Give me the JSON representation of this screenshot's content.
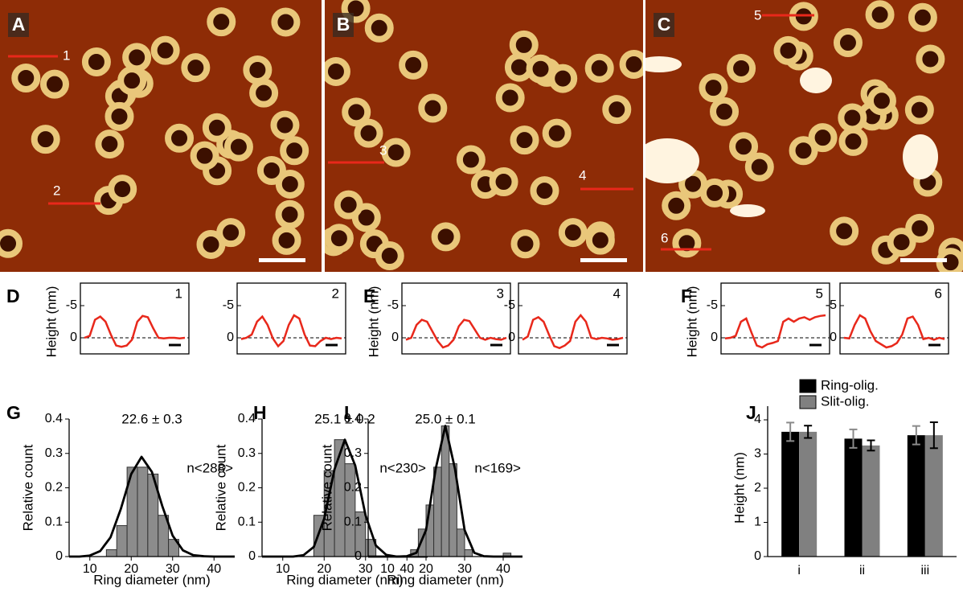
{
  "images": [
    {
      "label": "A",
      "line_labels": [
        "1",
        "2"
      ]
    },
    {
      "label": "B",
      "line_labels": [
        "3",
        "4"
      ]
    },
    {
      "label": "C",
      "line_labels": [
        "5",
        "6"
      ]
    }
  ],
  "chart_data": [
    {
      "type": "profile",
      "panel": "D",
      "ylabel": "Height (nm)",
      "title": "1",
      "values": [
        0,
        -0.3,
        -2.8,
        -3.3,
        -2.5,
        -0.5,
        1.2,
        1.4,
        1.2,
        0.3,
        -2.5,
        -3.4,
        -3.2,
        -1.5,
        0,
        0.1,
        0,
        0,
        0.1,
        0
      ],
      "ylim": [
        2.5,
        -8.5
      ],
      "yticks": [
        -5,
        0
      ],
      "color": "#e8281b"
    },
    {
      "type": "profile",
      "title": "2",
      "values": [
        0.2,
        0,
        -0.5,
        -2.5,
        -3.3,
        -2,
        0.1,
        1.3,
        0.5,
        -2,
        -3.5,
        -3,
        -0.5,
        1.2,
        1.3,
        0.5,
        0,
        0.2,
        0,
        0.1
      ],
      "ylim": [
        2.5,
        -8.5
      ],
      "yticks": [
        -5,
        0
      ],
      "color": "#e8281b"
    },
    {
      "type": "profile",
      "panel": "E",
      "ylabel": "Height (nm)",
      "title": "3",
      "values": [
        0.3,
        0,
        -2,
        -2.8,
        -2.5,
        -1,
        0.5,
        1.5,
        1.2,
        0.3,
        -1.8,
        -2.8,
        -2.6,
        -1.3,
        0,
        0.3,
        0,
        0.2,
        0.3,
        0
      ],
      "ylim": [
        2.5,
        -8.5
      ],
      "yticks": [
        -5,
        0
      ],
      "color": "#e8281b"
    },
    {
      "type": "profile",
      "title": "4",
      "values": [
        0.3,
        -0.2,
        -2.8,
        -3.2,
        -2.5,
        -0.5,
        1.3,
        1.6,
        1.2,
        0.5,
        -2.5,
        -3.5,
        -2.5,
        0,
        0.2,
        0,
        0.1,
        0.3,
        0.2,
        0
      ],
      "ylim": [
        2.5,
        -8.5
      ],
      "yticks": [
        -5,
        0
      ],
      "color": "#e8281b"
    },
    {
      "type": "profile",
      "panel": "F",
      "ylabel": "Height (nm)",
      "title": "5",
      "values": [
        0.1,
        0,
        -0.3,
        -2.5,
        -3,
        -0.8,
        1.2,
        1.5,
        1,
        0.8,
        0.5,
        -2.5,
        -3,
        -2.5,
        -3,
        -3.2,
        -2.8,
        -3.2,
        -3.4,
        -3.5
      ],
      "ylim": [
        2.5,
        -8.5
      ],
      "yticks": [
        -5,
        0
      ],
      "color": "#e8281b"
    },
    {
      "type": "profile",
      "title": "6",
      "values": [
        0,
        0.1,
        -2,
        -3.5,
        -3,
        -1,
        0.5,
        1,
        1.5,
        1.3,
        0.8,
        -0.5,
        -3,
        -3.3,
        -2,
        0.2,
        0,
        0.3,
        0,
        0.2
      ],
      "ylim": [
        2.5,
        -8.5
      ],
      "yticks": [
        -5,
        0
      ],
      "color": "#e8281b"
    },
    {
      "type": "histogram",
      "panel": "G",
      "title": "22.6 ± 0.3",
      "annotation": "n<288>",
      "xlabel": "Ring diameter (nm)",
      "ylabel": "Relative count",
      "bins": [
        14,
        16.5,
        19,
        21.5,
        24,
        26.5,
        29,
        31.5
      ],
      "counts": [
        0.02,
        0.09,
        0.26,
        0.26,
        0.24,
        0.12,
        0.05
      ],
      "fit": {
        "x": [
          5,
          7.5,
          10,
          12.5,
          15,
          17.5,
          20,
          22.5,
          25,
          27.5,
          30,
          32.5,
          35,
          37.5,
          40,
          42.5,
          45
        ],
        "y": [
          0,
          0,
          0.003,
          0.016,
          0.056,
          0.139,
          0.24,
          0.29,
          0.246,
          0.147,
          0.061,
          0.018,
          0.004,
          0.001,
          0,
          0,
          0
        ]
      },
      "xlim": [
        5,
        45
      ],
      "xticks": [
        10,
        20,
        30,
        40
      ],
      "ylim": [
        0,
        0.4
      ],
      "yticks": [
        0,
        0.1,
        0.2,
        0.3,
        0.4
      ],
      "color": "#8c8c8c"
    },
    {
      "type": "histogram",
      "panel": "H",
      "title": "25.1 ± 0.2",
      "annotation": "n<230>",
      "xlabel": "Ring diameter (nm)",
      "ylabel": "Relative count",
      "bins": [
        17.5,
        20,
        22.5,
        25,
        27.5,
        30,
        32.5
      ],
      "counts": [
        0.12,
        0.25,
        0.34,
        0.27,
        0.13,
        0.05
      ],
      "fit": {
        "x": [
          5,
          7.5,
          10,
          12.5,
          15,
          17.5,
          20,
          22.5,
          25,
          27.5,
          30,
          32.5,
          35,
          37.5,
          40,
          42.5,
          45
        ],
        "y": [
          0,
          0,
          0,
          0,
          0.004,
          0.028,
          0.11,
          0.254,
          0.34,
          0.265,
          0.12,
          0.032,
          0.005,
          0,
          0,
          0,
          0
        ]
      },
      "xlim": [
        5,
        45
      ],
      "xticks": [
        10,
        20,
        30,
        40
      ],
      "ylim": [
        0,
        0.4
      ],
      "yticks": [
        0,
        0.1,
        0.2,
        0.3,
        0.4
      ],
      "color": "#8c8c8c"
    },
    {
      "type": "histogram",
      "panel": "I",
      "title": "25.0 ± 0.1",
      "annotation": "n<169>",
      "xlabel": "Ring diameter (nm)",
      "ylabel": "Relative count",
      "bins": [
        16,
        18,
        20,
        22,
        24,
        26,
        28,
        30,
        32,
        34,
        36,
        38,
        40,
        42
      ],
      "counts": [
        0.02,
        0.08,
        0.15,
        0.26,
        0.38,
        0.27,
        0.08,
        0.02,
        0,
        0,
        0,
        0,
        0.01
      ],
      "fit": {
        "x": [
          5,
          7.5,
          10,
          12.5,
          15,
          17.5,
          20,
          22.5,
          25,
          27.5,
          30,
          32.5,
          35,
          37.5,
          40,
          42.5,
          45
        ],
        "y": [
          0,
          0,
          0,
          0,
          0.001,
          0.011,
          0.077,
          0.255,
          0.38,
          0.255,
          0.077,
          0.011,
          0.001,
          0,
          0,
          0,
          0
        ]
      },
      "xlim": [
        5,
        45
      ],
      "xticks": [
        10,
        20,
        30,
        40
      ],
      "ylim": [
        0,
        0.4
      ],
      "yticks": [
        0,
        0.1,
        0.2,
        0.3,
        0.4
      ],
      "color": "#8c8c8c"
    },
    {
      "type": "bar",
      "panel": "J",
      "ylabel": "Height (nm)",
      "categories": [
        "i",
        "ii",
        "iii"
      ],
      "series": [
        {
          "name": "Ring-olig.",
          "color": "#000000",
          "values": [
            3.65,
            3.45,
            3.55
          ],
          "errors": [
            0.27,
            0.27,
            0.27
          ]
        },
        {
          "name": "Slit-olig.",
          "color": "#808080",
          "values": [
            3.65,
            3.25,
            3.55
          ],
          "errors": [
            0.18,
            0.15,
            0.38
          ]
        }
      ],
      "ylim": [
        0,
        4.4
      ],
      "yticks": [
        0,
        1,
        2,
        3,
        4
      ],
      "legend": "top"
    }
  ]
}
